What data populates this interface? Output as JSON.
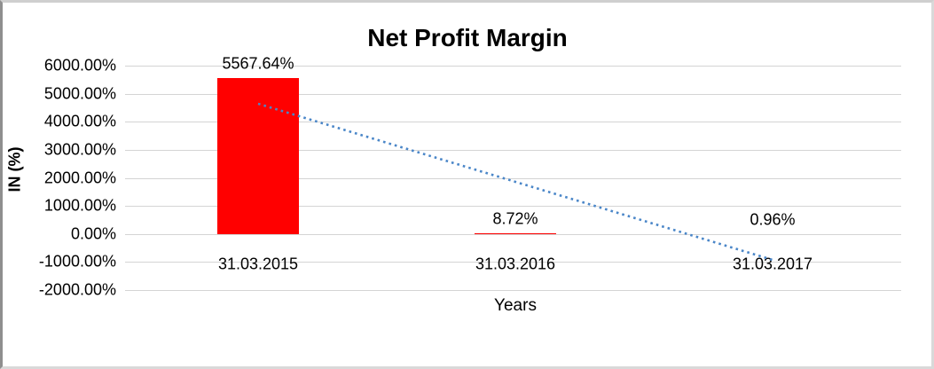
{
  "chart_data": {
    "type": "bar",
    "title": "Net Profit Margin",
    "categories": [
      "31.03.2015",
      "31.03.2016",
      "31.03.2017"
    ],
    "values": [
      5567.64,
      8.72,
      0.96
    ],
    "data_labels": [
      "5567.64%",
      "8.72%",
      "0.96%"
    ],
    "xlabel": "Years",
    "ylabel": "IN (%)",
    "ylim": [
      -2000,
      6000
    ],
    "ytick_step": 1000,
    "ytick_labels": [
      "6000.00%",
      "5000.00%",
      "4000.00%",
      "3000.00%",
      "2000.00%",
      "1000.00%",
      "0.00%",
      "-1000.00%",
      "-2000.00%"
    ],
    "grid": true,
    "legend": "none",
    "bar_color": "#ff0000",
    "gridline_color": "#d4d4d4",
    "trendline": {
      "type": "linear",
      "style": "dotted",
      "color": "#4a86c8",
      "fitted_values": [
        4642.45,
        1859.11,
        -924.23
      ]
    }
  }
}
